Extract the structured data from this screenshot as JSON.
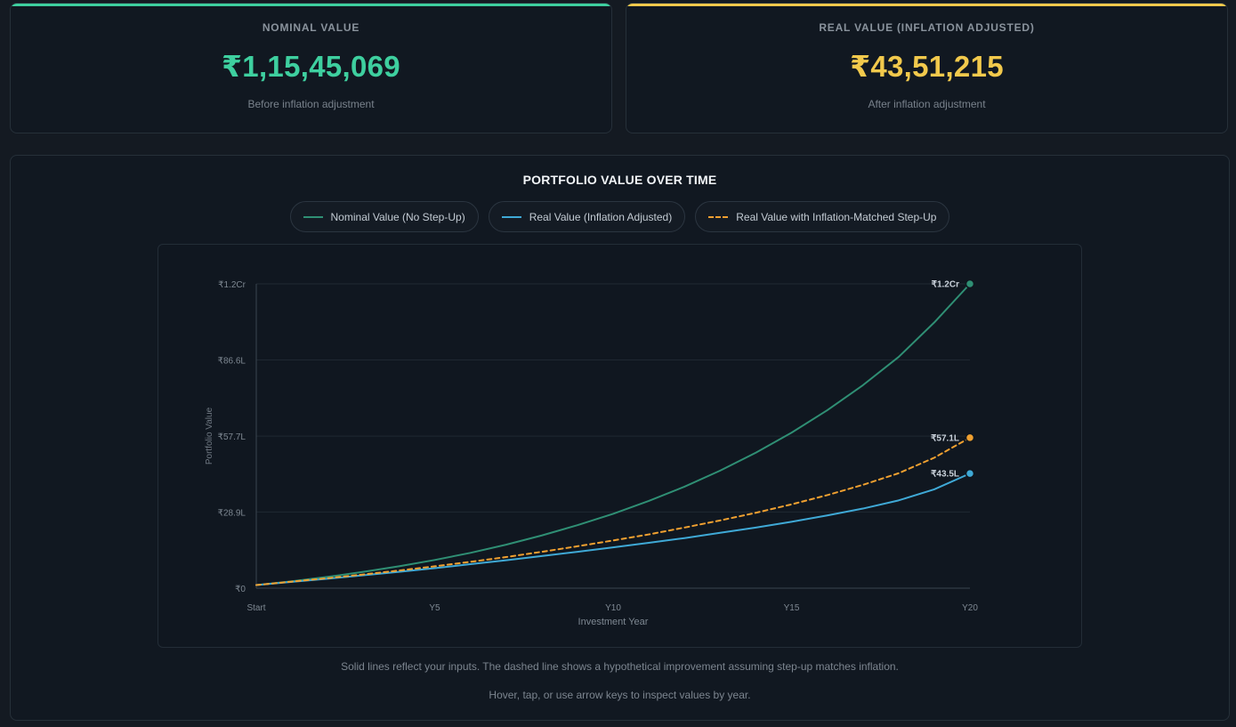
{
  "nominal_card": {
    "label": "NOMINAL VALUE",
    "value": "₹1,15,45,069",
    "sub": "Before inflation adjustment",
    "accent": "#3ecf9f"
  },
  "real_card": {
    "label": "REAL VALUE (INFLATION ADJUSTED)",
    "value": "₹43,51,215",
    "sub": "After inflation adjustment",
    "accent": "#f2c94c"
  },
  "chart_card": {
    "footnote1": "Solid lines reflect your inputs. The dashed line shows a hypothetical improvement assuming step-up matches inflation.",
    "footnote2": "Hover, tap, or use arrow keys to inspect values by year."
  },
  "chart_data": {
    "type": "line",
    "title": "PORTFOLIO VALUE OVER TIME",
    "xlabel": "Investment Year",
    "ylabel": "Portfolio Value",
    "x": [
      0,
      1,
      2,
      3,
      4,
      5,
      6,
      7,
      8,
      9,
      10,
      11,
      12,
      13,
      14,
      15,
      16,
      17,
      18,
      19,
      20
    ],
    "x_tick_labels": [
      "Start",
      "Y5",
      "Y10",
      "Y15",
      "Y20"
    ],
    "x_tick_positions": [
      0,
      5,
      10,
      15,
      20
    ],
    "ylim": [
      0,
      120
    ],
    "y_unit": "Lakh",
    "y_ticks": [
      0,
      28.9,
      57.7,
      86.6,
      115.45
    ],
    "y_tick_labels": [
      "₹0",
      "₹28.9L",
      "₹57.7L",
      "₹86.6L",
      "₹1.2Cr"
    ],
    "grid": true,
    "legend_position": "top-center",
    "series": [
      {
        "name": "Nominal Value (No Step-Up)",
        "color": "#2f8f74",
        "style": "solid",
        "end_label": "₹1.2Cr",
        "values": [
          1.2,
          2.6,
          4.3,
          6.2,
          8.3,
          10.7,
          13.4,
          16.5,
          20.0,
          23.9,
          28.2,
          33.1,
          38.5,
          44.6,
          51.4,
          59.0,
          67.5,
          77.0,
          87.7,
          100.8,
          115.45
        ]
      },
      {
        "name": "Real Value (Inflation Adjusted)",
        "color": "#3fa9d6",
        "style": "solid",
        "end_label": "₹43.5L",
        "values": [
          1.2,
          2.4,
          3.6,
          4.9,
          6.2,
          7.6,
          9.1,
          10.6,
          12.2,
          13.8,
          15.5,
          17.2,
          19.0,
          21.0,
          23.0,
          25.2,
          27.6,
          30.2,
          33.3,
          37.5,
          43.5
        ]
      },
      {
        "name": "Real Value with Inflation-Matched Step-Up",
        "color": "#f0a030",
        "style": "dashed",
        "end_label": "₹57.1L",
        "values": [
          1.2,
          2.5,
          3.8,
          5.2,
          6.7,
          8.3,
          10.0,
          11.8,
          13.8,
          15.9,
          18.1,
          20.4,
          23.0,
          25.7,
          28.6,
          31.8,
          35.3,
          39.2,
          43.6,
          49.5,
          57.1
        ]
      }
    ]
  }
}
